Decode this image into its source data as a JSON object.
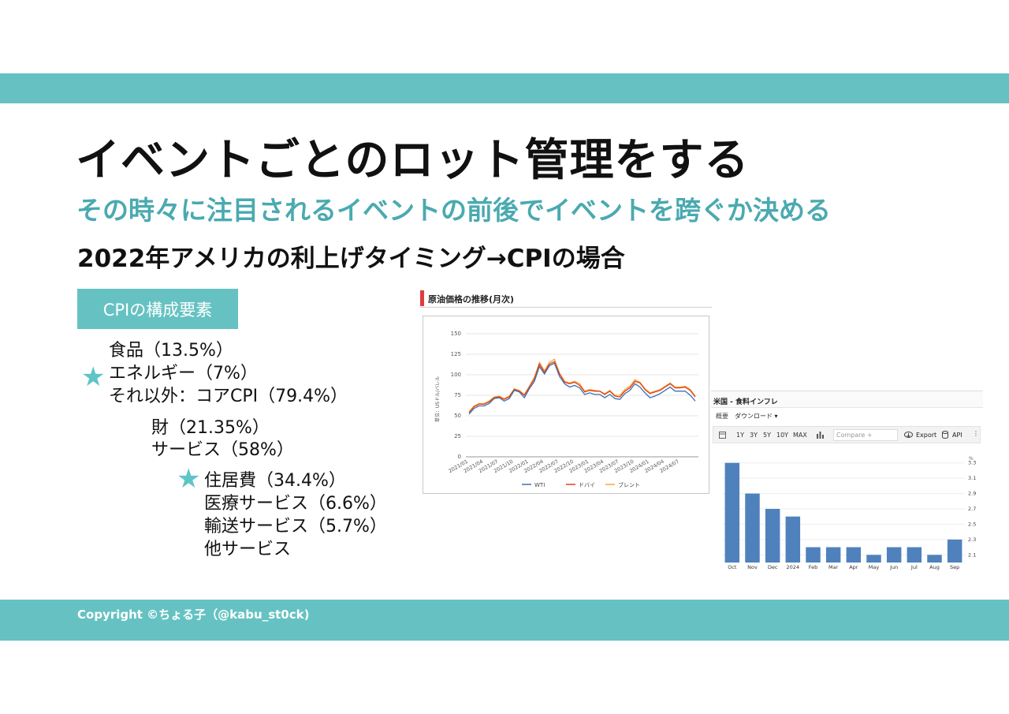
{
  "slide": {
    "title": "イベントごとのロット管理をする",
    "subtitle": "その時々に注目されるイベントの前後でイベントを跨ぐか決める",
    "heading": "2022年アメリカの利上げタイミング→CPIの場合",
    "copyright": "Copyright ©ちょる子（@kabu_st0ck)"
  },
  "cpi": {
    "tag": "CPIの構成要素",
    "star_glyph": "★",
    "items": [
      "食品（13.5%）",
      "エネルギー（7%）",
      "それ以外：コアCPI（79.4%）",
      "財（21.35%）",
      "サービス（58%）",
      "住居費（34.4%）",
      "医療サービス（6.6%）",
      "輸送サービス（5.7%）",
      "他サービス"
    ]
  },
  "colors": {
    "accent": "#66c2c2",
    "subtitle": "#4aaab0",
    "star": "#5ec4c8",
    "wti": "#3f6fb5",
    "dubai": "#e2401c",
    "brent": "#f2a93b",
    "bar": "#4f81bd"
  },
  "chart_data": [
    {
      "type": "line",
      "title": "原油価格の推移(月次)",
      "ylabel": "単位：USドル/バレル",
      "ylim": [
        0,
        150
      ],
      "yticks": [
        "0",
        "25",
        "50",
        "75",
        "100",
        "125",
        "150"
      ],
      "xticks": [
        "2021/01",
        "2021/04",
        "2021/07",
        "2021/10",
        "2022/01",
        "2022/04",
        "2022/07",
        "2022/10",
        "2023/01",
        "2023/04",
        "2023/07",
        "2023/10",
        "2024/01",
        "2024/04",
        "2024/07"
      ],
      "series": [
        {
          "name": "WTI",
          "values": [
            52,
            59,
            62,
            62,
            65,
            71,
            72,
            68,
            71,
            81,
            79,
            72,
            83,
            92,
            110,
            101,
            111,
            114,
            98,
            89,
            85,
            87,
            84,
            76,
            78,
            76,
            76,
            72,
            76,
            71,
            70,
            77,
            81,
            89,
            85,
            78,
            72,
            74,
            77,
            81,
            85,
            80,
            80,
            80,
            75,
            68
          ]
        },
        {
          "name": "ドバイ",
          "values": [
            54,
            61,
            64,
            64,
            67,
            72,
            73,
            70,
            73,
            82,
            80,
            75,
            85,
            95,
            113,
            103,
            113,
            116,
            101,
            91,
            89,
            91,
            87,
            79,
            81,
            80,
            80,
            76,
            80,
            74,
            73,
            80,
            84,
            92,
            90,
            82,
            77,
            79,
            81,
            85,
            89,
            84,
            84,
            85,
            81,
            73
          ]
        },
        {
          "name": "ブレント",
          "values": [
            55,
            62,
            65,
            65,
            68,
            73,
            74,
            71,
            74,
            83,
            81,
            76,
            86,
            97,
            115,
            105,
            115,
            119,
            102,
            92,
            90,
            92,
            89,
            80,
            82,
            81,
            80,
            77,
            81,
            75,
            75,
            82,
            86,
            94,
            91,
            83,
            78,
            80,
            82,
            86,
            90,
            85,
            85,
            86,
            82,
            74
          ]
        }
      ]
    },
    {
      "type": "bar",
      "title": "米国 - 食料インフレ",
      "categories": [
        "Oct",
        "Nov",
        "Dec",
        "2024",
        "Feb",
        "Mar",
        "Apr",
        "May",
        "Jun",
        "Jul",
        "Aug",
        "Sep"
      ],
      "values": [
        3.3,
        2.9,
        2.7,
        2.6,
        2.2,
        2.2,
        2.2,
        2.1,
        2.2,
        2.2,
        2.1,
        2.3
      ],
      "ylim": [
        2.0,
        3.4
      ],
      "yticks": [
        "3.3",
        "3.1",
        "2.9",
        "2.7",
        "2.5",
        "2.3",
        "2.1"
      ],
      "yunit": "%"
    }
  ],
  "inflation_panel": {
    "overview_label": "概要",
    "download_label": "ダウンロード ▾",
    "range_buttons": [
      "1Y",
      "3Y",
      "5Y",
      "10Y",
      "MAX"
    ],
    "compare_placeholder": "Compare +",
    "export_label": "Export",
    "api_label": "API",
    "more_label": "⋮",
    "calendar_icon": "calendar-icon",
    "chart_icon": "bar-chart-icon"
  }
}
